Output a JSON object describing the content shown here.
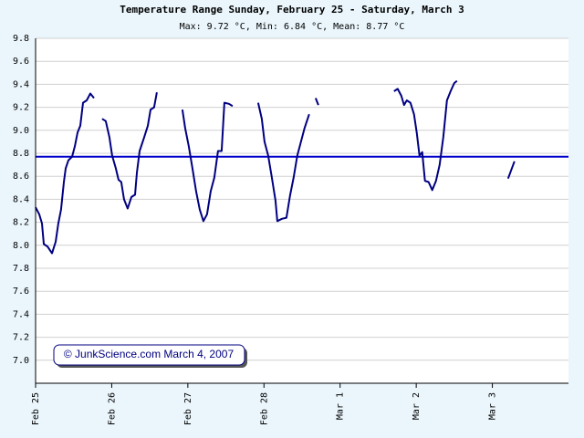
{
  "chart_data": {
    "type": "line",
    "title": "Temperature Range Sunday, February 25 - Saturday, March 3",
    "subtitle": "Max: 9.72 °C, Min: 6.84 °C, Mean: 8.77 °C",
    "annotation": "© JunkScience.com March 4, 2007",
    "xlim": [
      0,
      7
    ],
    "ylim": [
      6.8,
      9.8
    ],
    "xticks": [
      {
        "value": 0,
        "label": "Feb 25"
      },
      {
        "value": 1,
        "label": "Feb 26"
      },
      {
        "value": 2,
        "label": "Feb 27"
      },
      {
        "value": 3,
        "label": "Feb 28"
      },
      {
        "value": 4,
        "label": "Mar 1"
      },
      {
        "value": 5,
        "label": "Mar 2"
      },
      {
        "value": 6,
        "label": "Mar 3"
      }
    ],
    "yticks": [
      {
        "value": 7,
        "label": "7.0"
      },
      7.2,
      7.4,
      7.6,
      7.8,
      {
        "value": 8,
        "label": "8.0"
      },
      8.2,
      8.4,
      8.6,
      8.8,
      {
        "value": 9,
        "label": "9.0"
      },
      9.2,
      9.4,
      9.6,
      9.8
    ],
    "grid": true,
    "reference_line": {
      "value": 8.77,
      "color": "#0000cc"
    },
    "x": [
      0,
      0.048,
      0.084,
      0.108,
      0.156,
      0.216,
      0.264,
      0.299,
      0.335,
      0.371,
      0.395,
      0.431,
      0.479,
      0.515,
      0.551,
      0.587,
      0.623,
      0.671,
      0.719,
      0.767,
      0.82,
      0.874,
      0.922,
      0.97,
      1.006,
      1.054,
      1.09,
      1.126,
      1.162,
      1.21,
      1.258,
      1.306,
      1.33,
      1.366,
      1.426,
      1.474,
      1.51,
      1.557,
      1.593,
      1.76,
      1.929,
      1.965,
      2.012,
      2.06,
      2.108,
      2.156,
      2.204,
      2.252,
      2.3,
      2.348,
      2.396,
      2.444,
      2.48,
      2.54,
      2.588,
      2.75,
      2.923,
      2.971,
      3.007,
      3.055,
      3.103,
      3.151,
      3.175,
      3.235,
      3.295,
      3.342,
      3.39,
      3.438,
      3.486,
      3.534,
      3.594,
      3.64,
      3.678,
      3.714,
      4.2,
      4.708,
      4.756,
      4.804,
      4.84,
      4.876,
      4.924,
      4.971,
      5.007,
      5.043,
      5.079,
      5.115,
      5.163,
      5.211,
      5.259,
      5.307,
      5.355,
      5.403,
      5.451,
      5.499,
      5.535,
      5.87,
      6.206,
      6.29
    ],
    "series": [
      {
        "name": "Temperature",
        "color": "#000080",
        "values": [
          8.33,
          8.27,
          8.19,
          8.01,
          7.99,
          7.93,
          8.03,
          8.19,
          8.31,
          8.55,
          8.67,
          8.74,
          8.77,
          8.86,
          8.98,
          9.04,
          9.24,
          9.26,
          9.32,
          9.28,
          null,
          9.1,
          9.08,
          8.94,
          8.78,
          8.67,
          8.57,
          8.55,
          8.4,
          8.32,
          8.42,
          8.44,
          8.63,
          8.82,
          8.94,
          9.04,
          9.18,
          9.2,
          9.33,
          null,
          9.18,
          9.02,
          8.86,
          8.67,
          8.47,
          8.31,
          8.21,
          8.27,
          8.47,
          8.59,
          8.82,
          8.82,
          9.24,
          9.23,
          9.21,
          null,
          9.24,
          9.1,
          8.9,
          8.78,
          8.59,
          8.39,
          8.21,
          8.23,
          8.24,
          8.43,
          8.59,
          8.78,
          8.9,
          9.02,
          9.14,
          null,
          9.28,
          9.22,
          null,
          9.34,
          9.36,
          9.3,
          9.22,
          9.26,
          9.24,
          9.14,
          8.98,
          8.78,
          8.81,
          8.56,
          8.55,
          8.48,
          8.56,
          8.7,
          8.94,
          9.26,
          9.34,
          9.41,
          9.43,
          null,
          8.58,
          8.73
        ]
      }
    ]
  }
}
